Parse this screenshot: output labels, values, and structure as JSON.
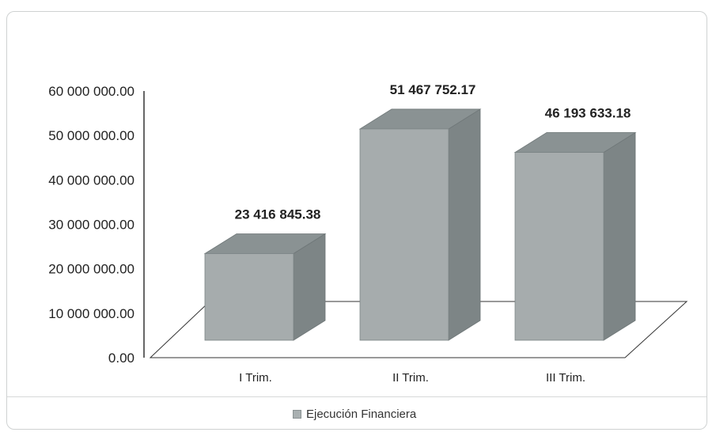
{
  "chart_data": {
    "type": "bar",
    "style": "3d-column",
    "categories": [
      "I Trim.",
      "II Trim.",
      "III Trim."
    ],
    "series": [
      {
        "name": "Ejecución Financiera",
        "values": [
          23416845.38,
          51467752.17,
          46193633.18
        ]
      }
    ],
    "data_labels": [
      "23 416 845.38",
      "51 467 752.17",
      "46 193 633.18"
    ],
    "ylim": [
      0,
      60000000
    ],
    "y_ticks": [
      0,
      10000000,
      20000000,
      30000000,
      40000000,
      50000000,
      60000000
    ],
    "y_tick_labels": [
      "0.00",
      "10 000 000.00",
      "20 000 000.00",
      "30 000 000.00",
      "40 000 000.00",
      "50 000 000.00",
      "60 000 000.00"
    ],
    "grid": false,
    "legend_position": "bottom",
    "colors": {
      "bar_front": "#a6acad",
      "bar_top": "#8a9293",
      "bar_side": "#7d8586",
      "axis": "#333333",
      "floor": "#ffffff"
    }
  }
}
